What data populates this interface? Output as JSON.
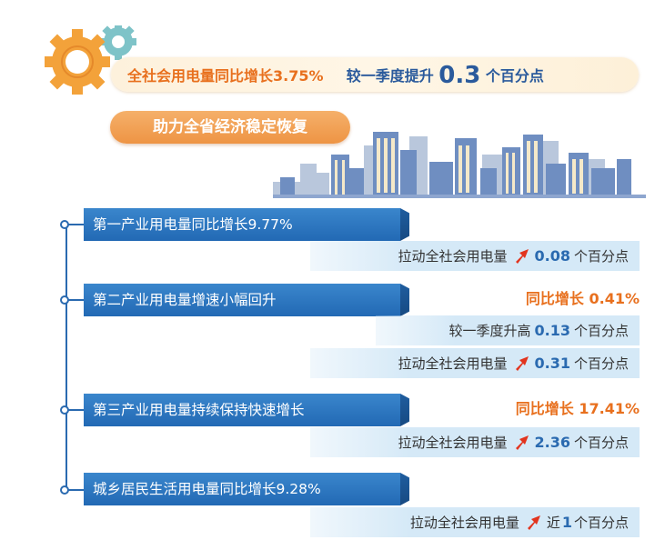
{
  "banner": {
    "prefix": "全社会用电量同比增长",
    "percent": "3.75%",
    "mid": "较一季度提升",
    "big_number": "0.3",
    "suffix": "个百分点"
  },
  "subtitle": "助力全省经济稳定恢复",
  "sections": [
    {
      "header": "第一产业用电量同比增长9.77%",
      "rows": [
        {
          "label": "拉动全社会用电量",
          "value": "0.08",
          "unit": "个百分点"
        }
      ]
    },
    {
      "header": "第二产业用电量增速小幅回升",
      "highlight": "同比增长 0.41%",
      "plain": {
        "label": "较一季度升高",
        "value": "0.13",
        "unit": "个百分点"
      },
      "rows": [
        {
          "label": "拉动全社会用电量",
          "value": "0.31",
          "unit": "个百分点"
        }
      ]
    },
    {
      "header": "第三产业用电量持续保持快速增长",
      "highlight": "同比增长 17.41%",
      "rows": [
        {
          "label": "拉动全社会用电量",
          "value": "2.36",
          "unit": "个百分点"
        }
      ]
    },
    {
      "header": "城乡居民生活用电量同比增长9.28%",
      "rows": [
        {
          "label": "拉动全社会用电量",
          "value_prefix": "近",
          "value": "1",
          "unit": "个百分点"
        }
      ]
    }
  ],
  "colors": {
    "blue": "#2a6ab0",
    "orange": "#e8701e",
    "row_bg": "#d5e9f7"
  },
  "icons": [
    "gear-icon",
    "city-skyline-icon",
    "up-arrow-icon"
  ]
}
